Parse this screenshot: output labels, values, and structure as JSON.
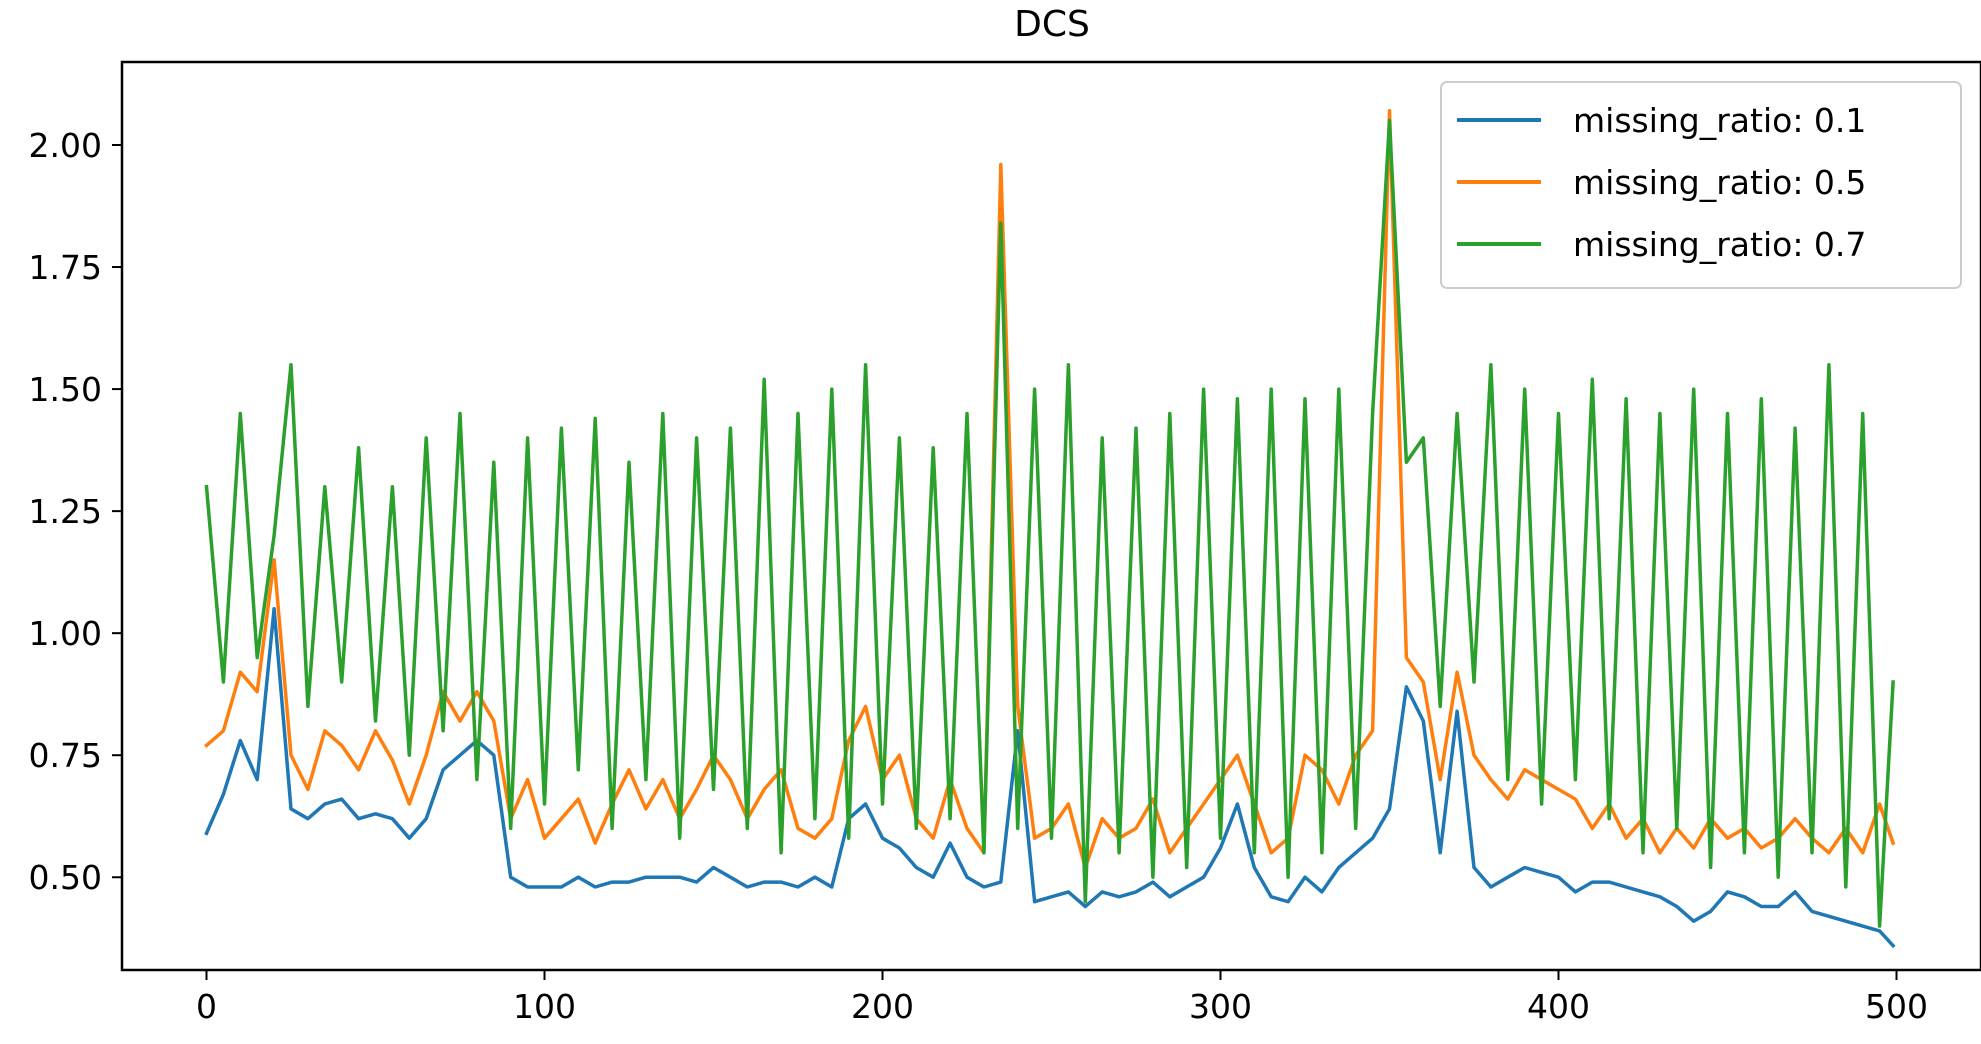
{
  "chart_data": {
    "type": "line",
    "title": "DCS",
    "xlabel": "",
    "ylabel": "",
    "xlim": [
      -25,
      525
    ],
    "ylim": [
      0.31,
      2.17
    ],
    "xticks": [
      0,
      100,
      200,
      300,
      400,
      500
    ],
    "xtick_labels": [
      "0",
      "100",
      "200",
      "300",
      "400",
      "500"
    ],
    "yticks": [
      0.5,
      0.75,
      1.0,
      1.25,
      1.5,
      1.75,
      2.0
    ],
    "ytick_labels": [
      "0.50",
      "0.75",
      "1.00",
      "1.25",
      "1.50",
      "1.75",
      "2.00"
    ],
    "grid": false,
    "legend_position": "upper right",
    "series": [
      {
        "name": "missing_ratio: 0.1",
        "color": "#1f77b4",
        "x": [
          0,
          5,
          10,
          15,
          20,
          25,
          30,
          35,
          40,
          45,
          50,
          55,
          60,
          65,
          70,
          75,
          80,
          85,
          90,
          95,
          100,
          105,
          110,
          115,
          120,
          125,
          130,
          135,
          140,
          145,
          150,
          155,
          160,
          165,
          170,
          175,
          180,
          185,
          190,
          195,
          200,
          205,
          210,
          215,
          220,
          225,
          230,
          235,
          240,
          245,
          250,
          255,
          260,
          265,
          270,
          275,
          280,
          285,
          290,
          295,
          300,
          305,
          310,
          315,
          320,
          325,
          330,
          335,
          340,
          345,
          350,
          355,
          360,
          365,
          370,
          375,
          380,
          385,
          390,
          395,
          400,
          405,
          410,
          415,
          420,
          425,
          430,
          435,
          440,
          445,
          450,
          455,
          460,
          465,
          470,
          475,
          480,
          485,
          490,
          495,
          499
        ],
        "y": [
          0.59,
          0.67,
          0.78,
          0.7,
          1.05,
          0.64,
          0.62,
          0.65,
          0.66,
          0.62,
          0.63,
          0.62,
          0.58,
          0.62,
          0.72,
          0.75,
          0.78,
          0.75,
          0.5,
          0.48,
          0.48,
          0.48,
          0.5,
          0.48,
          0.49,
          0.49,
          0.5,
          0.5,
          0.5,
          0.49,
          0.52,
          0.5,
          0.48,
          0.49,
          0.49,
          0.48,
          0.5,
          0.48,
          0.62,
          0.65,
          0.58,
          0.56,
          0.52,
          0.5,
          0.57,
          0.5,
          0.48,
          0.49,
          0.8,
          0.45,
          0.46,
          0.47,
          0.44,
          0.47,
          0.46,
          0.47,
          0.49,
          0.46,
          0.48,
          0.5,
          0.56,
          0.65,
          0.52,
          0.46,
          0.45,
          0.5,
          0.47,
          0.52,
          0.55,
          0.58,
          0.64,
          0.89,
          0.82,
          0.55,
          0.84,
          0.52,
          0.48,
          0.5,
          0.52,
          0.51,
          0.5,
          0.47,
          0.49,
          0.49,
          0.48,
          0.47,
          0.46,
          0.44,
          0.41,
          0.43,
          0.47,
          0.46,
          0.44,
          0.44,
          0.47,
          0.43,
          0.42,
          0.41,
          0.4,
          0.39,
          0.36
        ]
      },
      {
        "name": "missing_ratio: 0.5",
        "color": "#ff7f0e",
        "x": [
          0,
          5,
          10,
          15,
          20,
          25,
          30,
          35,
          40,
          45,
          50,
          55,
          60,
          65,
          70,
          75,
          80,
          85,
          90,
          95,
          100,
          105,
          110,
          115,
          120,
          125,
          130,
          135,
          140,
          145,
          150,
          155,
          160,
          165,
          170,
          175,
          180,
          185,
          190,
          195,
          200,
          205,
          210,
          215,
          220,
          225,
          230,
          235,
          240,
          245,
          250,
          255,
          260,
          265,
          270,
          275,
          280,
          285,
          290,
          295,
          300,
          305,
          310,
          315,
          320,
          325,
          330,
          335,
          340,
          345,
          350,
          355,
          360,
          365,
          370,
          375,
          380,
          385,
          390,
          395,
          400,
          405,
          410,
          415,
          420,
          425,
          430,
          435,
          440,
          445,
          450,
          455,
          460,
          465,
          470,
          475,
          480,
          485,
          490,
          495,
          499
        ],
        "y": [
          0.77,
          0.8,
          0.92,
          0.88,
          1.15,
          0.75,
          0.68,
          0.8,
          0.77,
          0.72,
          0.8,
          0.74,
          0.65,
          0.75,
          0.88,
          0.82,
          0.88,
          0.82,
          0.62,
          0.7,
          0.58,
          0.62,
          0.66,
          0.57,
          0.65,
          0.72,
          0.64,
          0.7,
          0.62,
          0.68,
          0.75,
          0.7,
          0.62,
          0.68,
          0.72,
          0.6,
          0.58,
          0.62,
          0.78,
          0.85,
          0.7,
          0.75,
          0.62,
          0.58,
          0.7,
          0.6,
          0.55,
          1.96,
          0.85,
          0.58,
          0.6,
          0.65,
          0.52,
          0.62,
          0.58,
          0.6,
          0.66,
          0.55,
          0.6,
          0.65,
          0.7,
          0.75,
          0.65,
          0.55,
          0.58,
          0.75,
          0.72,
          0.65,
          0.75,
          0.8,
          2.07,
          0.95,
          0.9,
          0.7,
          0.92,
          0.75,
          0.7,
          0.66,
          0.72,
          0.7,
          0.68,
          0.66,
          0.6,
          0.65,
          0.58,
          0.62,
          0.55,
          0.6,
          0.56,
          0.62,
          0.58,
          0.6,
          0.56,
          0.58,
          0.62,
          0.58,
          0.55,
          0.6,
          0.55,
          0.65,
          0.57
        ]
      },
      {
        "name": "missing_ratio: 0.7",
        "color": "#2ca02c",
        "x": [
          0,
          5,
          10,
          15,
          20,
          25,
          30,
          35,
          40,
          45,
          50,
          55,
          60,
          65,
          70,
          75,
          80,
          85,
          90,
          95,
          100,
          105,
          110,
          115,
          120,
          125,
          130,
          135,
          140,
          145,
          150,
          155,
          160,
          165,
          170,
          175,
          180,
          185,
          190,
          195,
          200,
          205,
          210,
          215,
          220,
          225,
          230,
          235,
          240,
          245,
          250,
          255,
          260,
          265,
          270,
          275,
          280,
          285,
          290,
          295,
          300,
          305,
          310,
          315,
          320,
          325,
          330,
          335,
          340,
          345,
          350,
          355,
          360,
          365,
          370,
          375,
          380,
          385,
          390,
          395,
          400,
          405,
          410,
          415,
          420,
          425,
          430,
          435,
          440,
          445,
          450,
          455,
          460,
          465,
          470,
          475,
          480,
          485,
          490,
          495,
          499
        ],
        "y": [
          1.3,
          0.9,
          1.45,
          0.95,
          1.2,
          1.55,
          0.85,
          1.3,
          0.9,
          1.38,
          0.82,
          1.3,
          0.75,
          1.4,
          0.8,
          1.45,
          0.7,
          1.35,
          0.6,
          1.4,
          0.65,
          1.42,
          0.72,
          1.44,
          0.6,
          1.35,
          0.7,
          1.45,
          0.58,
          1.4,
          0.68,
          1.42,
          0.6,
          1.52,
          0.55,
          1.45,
          0.62,
          1.5,
          0.58,
          1.55,
          0.65,
          1.4,
          0.6,
          1.38,
          0.62,
          1.45,
          0.55,
          1.84,
          0.6,
          1.5,
          0.58,
          1.55,
          0.45,
          1.4,
          0.55,
          1.42,
          0.5,
          1.45,
          0.52,
          1.5,
          0.58,
          1.48,
          0.55,
          1.5,
          0.5,
          1.48,
          0.55,
          1.5,
          0.6,
          1.45,
          2.05,
          1.35,
          1.4,
          0.85,
          1.45,
          0.9,
          1.55,
          0.7,
          1.5,
          0.65,
          1.45,
          0.7,
          1.52,
          0.62,
          1.48,
          0.55,
          1.45,
          0.6,
          1.5,
          0.52,
          1.45,
          0.55,
          1.48,
          0.5,
          1.42,
          0.55,
          1.55,
          0.48,
          1.45,
          0.4,
          0.9
        ]
      }
    ]
  }
}
